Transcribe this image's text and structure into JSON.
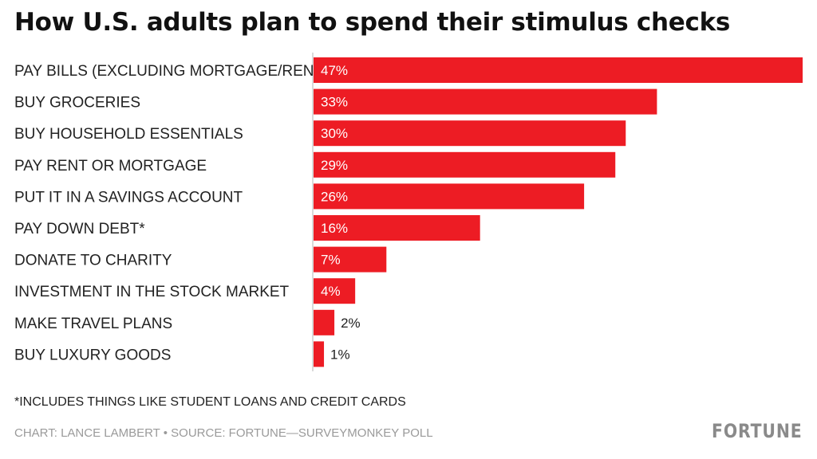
{
  "chart_data": {
    "type": "bar",
    "orientation": "horizontal",
    "title": "How U.S. adults plan to spend their stimulus checks",
    "categories": [
      "PAY BILLS (EXCLUDING MORTGAGE/RENT)",
      "BUY GROCERIES",
      "BUY HOUSEHOLD ESSENTIALS",
      "PAY RENT OR MORTGAGE",
      "PUT IT IN A SAVINGS ACCOUNT",
      "PAY DOWN DEBT*",
      "DONATE TO CHARITY",
      "INVESTMENT IN THE STOCK MARKET",
      "MAKE TRAVEL PLANS",
      "BUY LUXURY GOODS"
    ],
    "values": [
      47,
      33,
      30,
      29,
      26,
      16,
      7,
      4,
      2,
      1
    ],
    "value_labels": [
      "47%",
      "33%",
      "30%",
      "29%",
      "26%",
      "16%",
      "7%",
      "4%",
      "2%",
      "1%"
    ],
    "unit": "%",
    "xlim": [
      0,
      47
    ],
    "grid": false,
    "bar_color": "#ed1c24"
  },
  "footnote": "*INCLUDES THINGS LIKE STUDENT LOANS AND CREDIT CARDS",
  "credit": "CHART: LANCE LAMBERT • SOURCE: FORTUNE—SURVEYMONKEY POLL",
  "brand": "FORTUNE"
}
